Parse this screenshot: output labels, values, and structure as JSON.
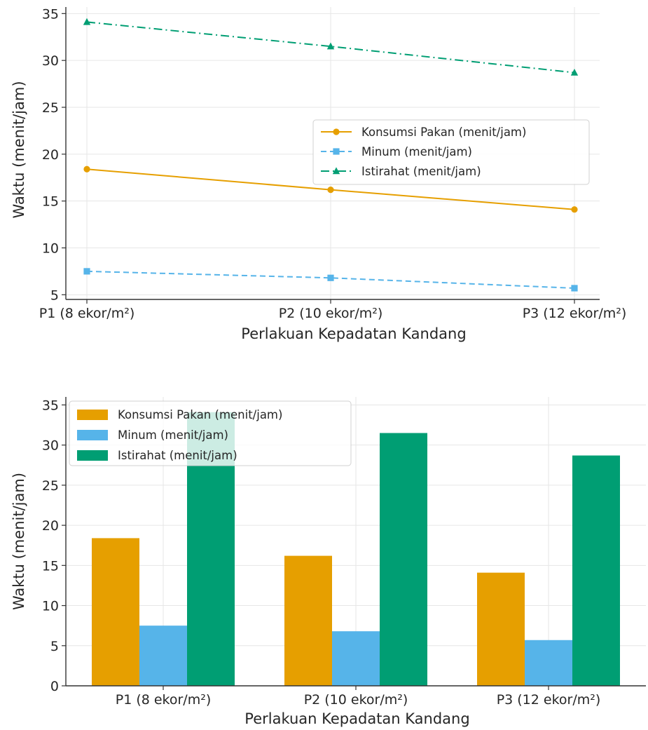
{
  "chart_data": [
    {
      "type": "line",
      "title": "",
      "xlabel": "Perlakuan Kepadatan Kandang",
      "ylabel": "Waktu (menit/jam)",
      "categories": [
        "P1 (8 ekor/m²)",
        "P2 (10 ekor/m²)",
        "P3 (12 ekor/m²)"
      ],
      "ylim": [
        4.5,
        35.7
      ],
      "yticks": [
        5,
        10,
        15,
        20,
        25,
        30,
        35
      ],
      "grid": true,
      "legend_position": "center-right",
      "series": [
        {
          "name": "Konsumsi Pakan (menit/jam)",
          "values": [
            18.4,
            16.2,
            14.1
          ],
          "color": "#E69F00",
          "marker": "circle",
          "linestyle": "solid"
        },
        {
          "name": "Minum (menit/jam)",
          "values": [
            7.5,
            6.8,
            5.7
          ],
          "color": "#56B4E9",
          "marker": "square",
          "linestyle": "dashed"
        },
        {
          "name": "Istirahat (menit/jam)",
          "values": [
            34.1,
            31.5,
            28.7
          ],
          "color": "#009E73",
          "marker": "triangle",
          "linestyle": "dashdot"
        }
      ]
    },
    {
      "type": "bar",
      "title": "",
      "xlabel": "Perlakuan Kepadatan Kandang",
      "ylabel": "Waktu (menit/jam)",
      "categories": [
        "P1 (8 ekor/m²)",
        "P2 (10 ekor/m²)",
        "P3 (12 ekor/m²)"
      ],
      "ylim": [
        0,
        36
      ],
      "yticks": [
        0,
        5,
        10,
        15,
        20,
        25,
        30,
        35
      ],
      "grid": true,
      "legend_position": "top-left",
      "series": [
        {
          "name": "Konsumsi Pakan (menit/jam)",
          "values": [
            18.4,
            16.2,
            14.1
          ],
          "color": "#E69F00"
        },
        {
          "name": "Minum (menit/jam)",
          "values": [
            7.5,
            6.8,
            5.7
          ],
          "color": "#56B4E9"
        },
        {
          "name": "Istirahat (menit/jam)",
          "values": [
            34.1,
            31.5,
            28.7
          ],
          "color": "#009E73"
        }
      ]
    }
  ]
}
